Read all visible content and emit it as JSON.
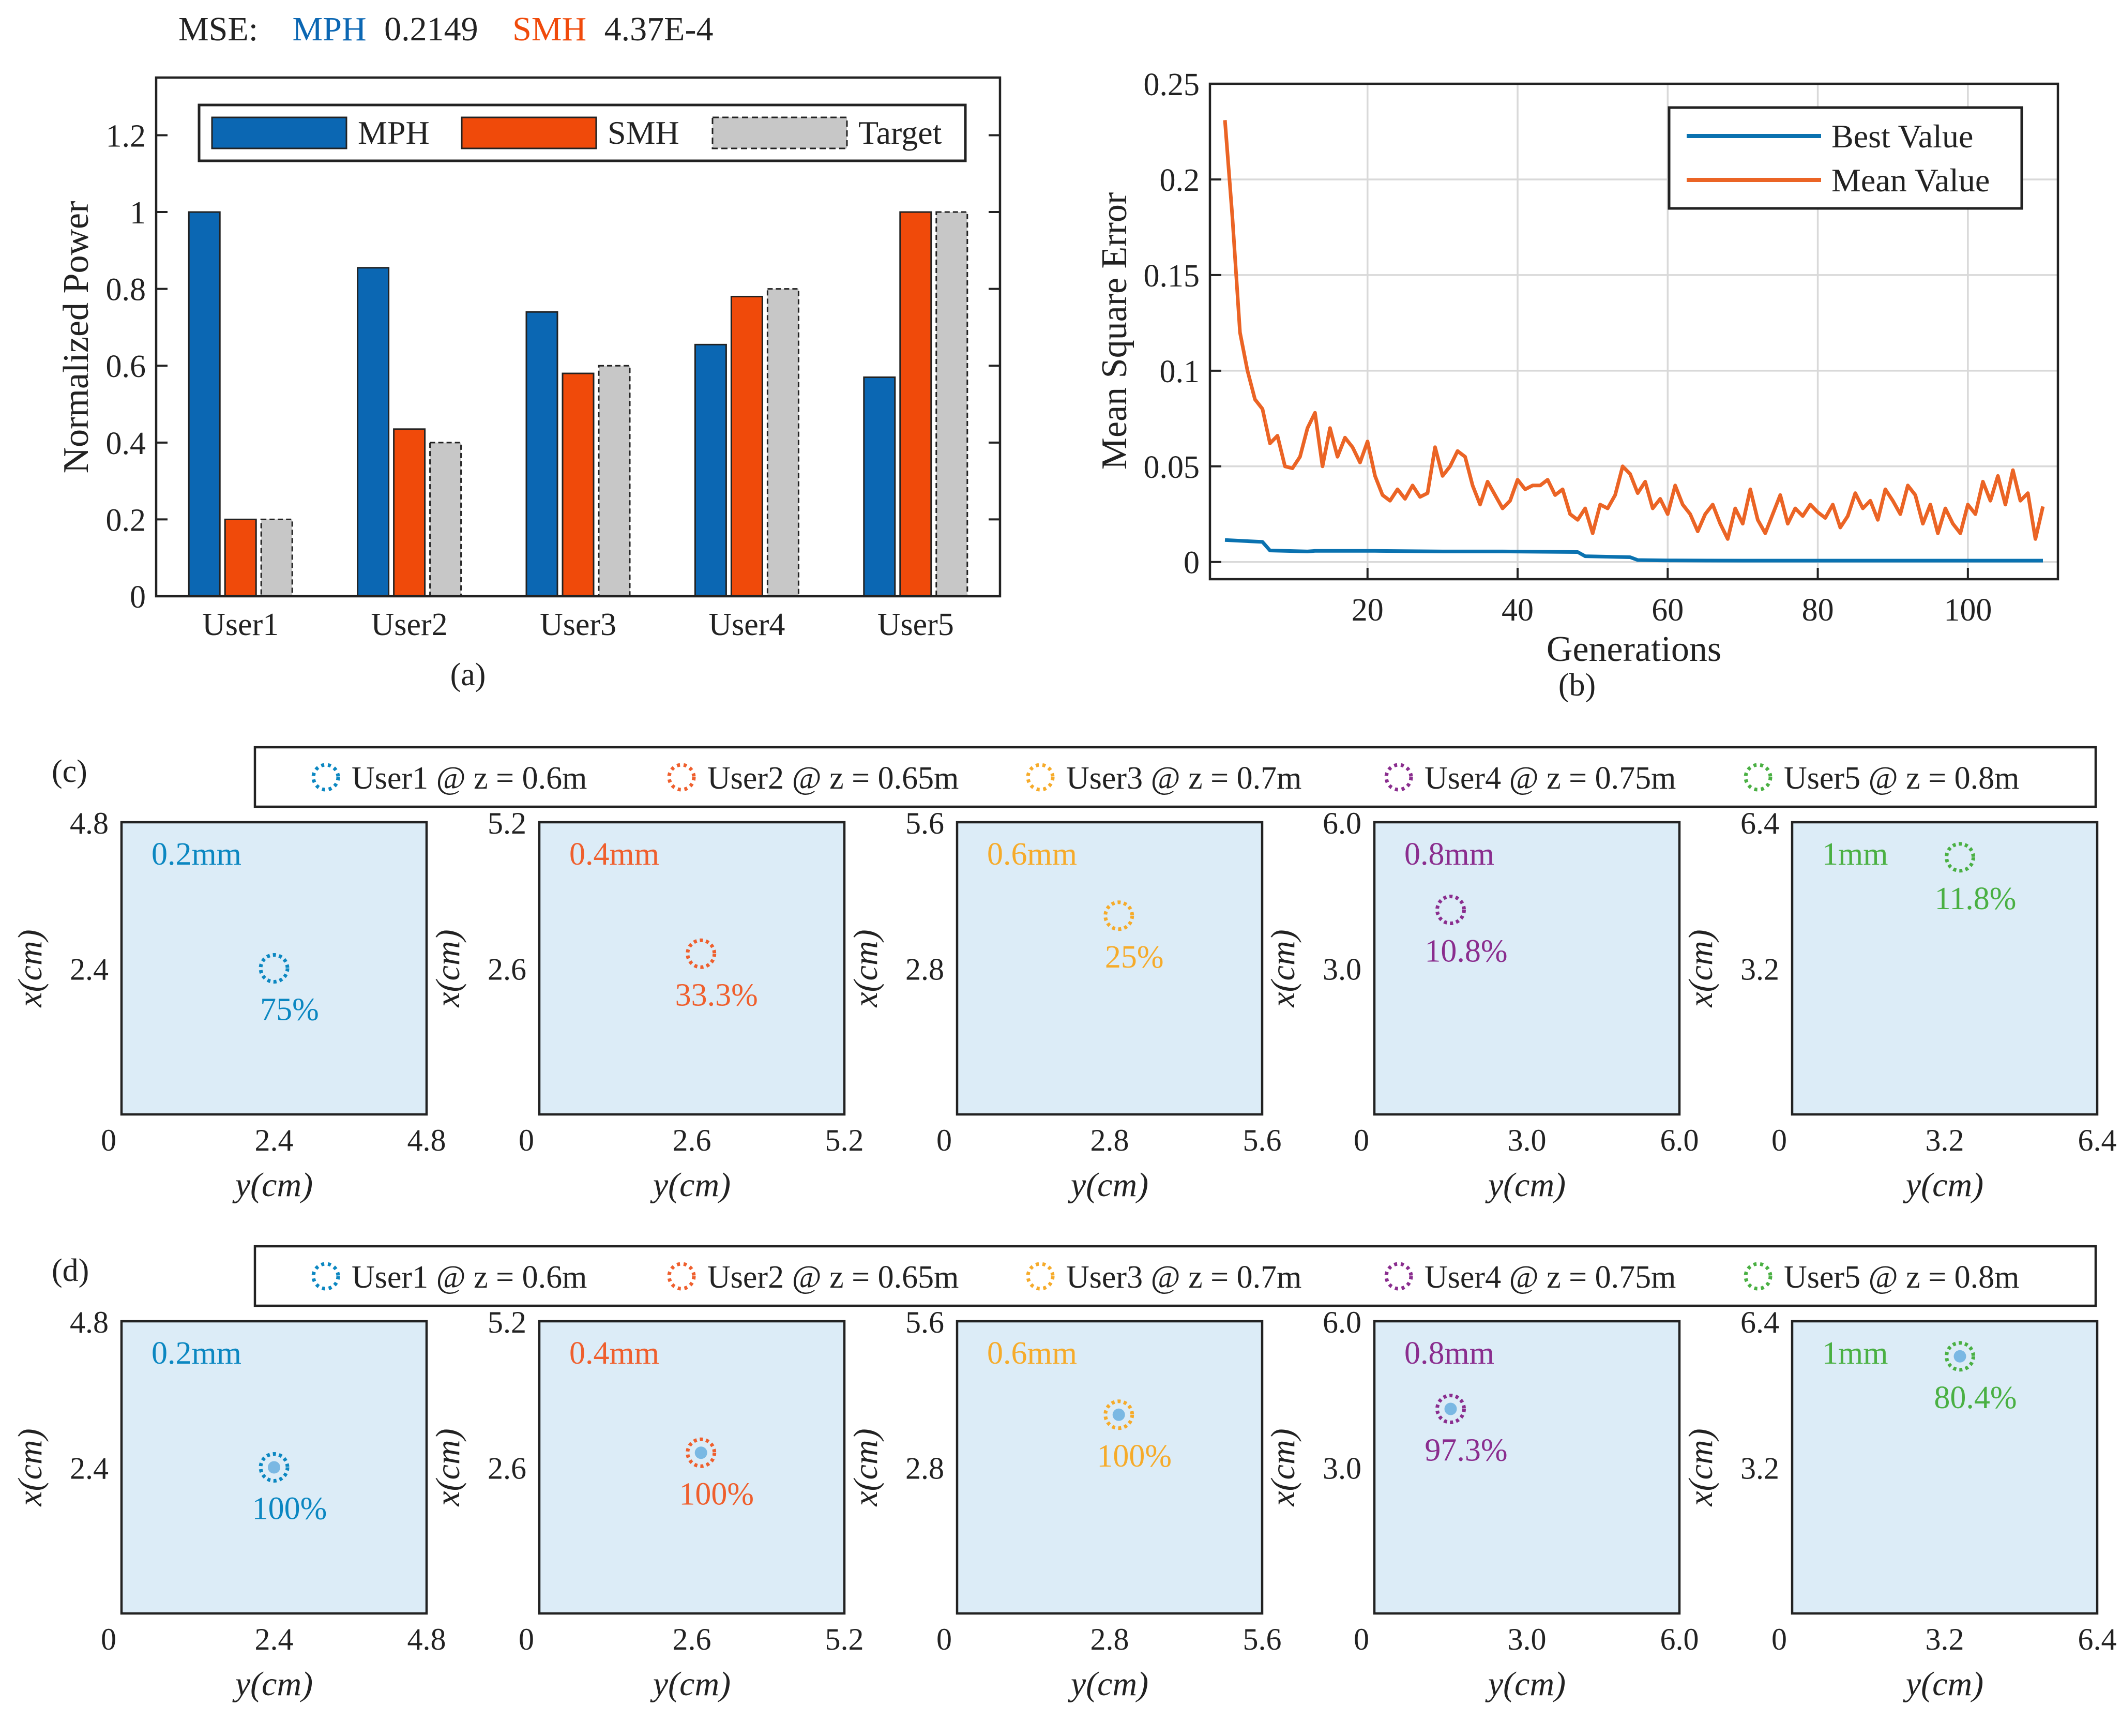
{
  "colors": {
    "mph": "#0b67b3",
    "smh": "#f04a0a",
    "target": "#c7c7c7",
    "best": "#0a72b0",
    "mean": "#eb6425",
    "user1": "#0b87c1",
    "user2": "#ef5f2d",
    "user3": "#f6ab2a",
    "user4": "#8a2d8e",
    "user5": "#4ab043"
  },
  "mse": {
    "prefix": "MSE:",
    "mph_label": "MPH",
    "mph_value": "0.2149",
    "smh_label": "SMH",
    "smh_value": "4.37E-4"
  },
  "chart_data": [
    {
      "id": "a",
      "type": "bar",
      "caption": "(a)",
      "ylabel": "Normalized Power",
      "xlabel": "",
      "ylim": [
        0,
        1.35
      ],
      "yticks": [
        "0",
        "0.2",
        "0.4",
        "0.6",
        "0.8",
        "1",
        "1.2"
      ],
      "ytick_values": [
        0,
        0.2,
        0.4,
        0.6,
        0.8,
        1.0,
        1.2
      ],
      "categories": [
        "User1",
        "User2",
        "User3",
        "User4",
        "User5"
      ],
      "legend": [
        "MPH",
        "SMH",
        "Target"
      ],
      "legend_position": "top",
      "series": [
        {
          "name": "MPH",
          "values": [
            1.0,
            0.855,
            0.74,
            0.655,
            0.57
          ]
        },
        {
          "name": "SMH",
          "values": [
            0.2,
            0.435,
            0.58,
            0.78,
            1.0
          ]
        },
        {
          "name": "Target",
          "values": [
            0.2,
            0.4,
            0.6,
            0.8,
            1.0
          ]
        }
      ]
    },
    {
      "id": "b",
      "type": "line",
      "caption": "(b)",
      "xlabel": "Generations",
      "ylabel": "Mean Square Error",
      "xlim": [
        -1,
        112
      ],
      "ylim": [
        -0.009,
        0.25
      ],
      "xticks": [
        "20",
        "40",
        "60",
        "80",
        "100"
      ],
      "xtick_values": [
        20,
        40,
        60,
        80,
        100
      ],
      "yticks": [
        "0",
        "0.05",
        "0.1",
        "0.15",
        "0.2",
        "0.25"
      ],
      "ytick_values": [
        0,
        0.05,
        0.1,
        0.15,
        0.2,
        0.25
      ],
      "grid": true,
      "legend_position": "top-right",
      "series": [
        {
          "name": "Best Value",
          "x": [
            1,
            6,
            7,
            12,
            13,
            20,
            21,
            30,
            31,
            37,
            38,
            48,
            49,
            55,
            56,
            60,
            61,
            70,
            71,
            80,
            81,
            90,
            91,
            100,
            101,
            110
          ],
          "values": [
            0.0115,
            0.0105,
            0.006,
            0.0055,
            0.0058,
            0.0058,
            0.0058,
            0.0055,
            0.0055,
            0.0055,
            0.0055,
            0.0052,
            0.003,
            0.0025,
            0.001,
            0.0008,
            0.0008,
            0.0007,
            0.0007,
            0.0007,
            0.0007,
            0.0007,
            0.0007,
            0.0007,
            0.0007,
            0.0007
          ]
        },
        {
          "name": "Mean Value",
          "x": [
            1,
            2,
            3,
            4,
            5,
            6,
            7,
            8,
            9,
            10,
            11,
            12,
            13,
            14,
            15,
            16,
            17,
            18,
            19,
            20,
            21,
            22,
            23,
            24,
            25,
            26,
            27,
            28,
            29,
            30,
            31,
            32,
            33,
            34,
            35,
            36,
            37,
            38,
            39,
            40,
            41,
            42,
            43,
            44,
            45,
            46,
            47,
            48,
            49,
            50,
            51,
            52,
            53,
            54,
            55,
            56,
            57,
            58,
            59,
            60,
            61,
            62,
            63,
            64,
            65,
            66,
            67,
            68,
            69,
            70,
            71,
            72,
            73,
            74,
            75,
            76,
            77,
            78,
            79,
            80,
            81,
            82,
            83,
            84,
            85,
            86,
            87,
            88,
            89,
            90,
            91,
            92,
            93,
            94,
            95,
            96,
            97,
            98,
            99,
            100,
            101,
            102,
            103,
            104,
            105,
            106,
            107,
            108,
            109,
            110
          ],
          "values": [
            0.231,
            0.18,
            0.12,
            0.1,
            0.085,
            0.08,
            0.062,
            0.066,
            0.05,
            0.049,
            0.055,
            0.07,
            0.078,
            0.05,
            0.07,
            0.055,
            0.065,
            0.06,
            0.052,
            0.063,
            0.045,
            0.035,
            0.032,
            0.038,
            0.033,
            0.04,
            0.034,
            0.036,
            0.06,
            0.045,
            0.05,
            0.058,
            0.055,
            0.04,
            0.03,
            0.042,
            0.035,
            0.028,
            0.032,
            0.043,
            0.038,
            0.04,
            0.04,
            0.043,
            0.035,
            0.038,
            0.025,
            0.022,
            0.028,
            0.015,
            0.03,
            0.028,
            0.035,
            0.05,
            0.046,
            0.036,
            0.042,
            0.028,
            0.033,
            0.025,
            0.04,
            0.03,
            0.025,
            0.016,
            0.025,
            0.03,
            0.02,
            0.012,
            0.028,
            0.02,
            0.038,
            0.022,
            0.015,
            0.025,
            0.035,
            0.02,
            0.028,
            0.024,
            0.03,
            0.026,
            0.023,
            0.03,
            0.018,
            0.024,
            0.036,
            0.028,
            0.032,
            0.022,
            0.038,
            0.032,
            0.025,
            0.04,
            0.035,
            0.02,
            0.03,
            0.015,
            0.028,
            0.02,
            0.015,
            0.03,
            0.025,
            0.042,
            0.032,
            0.045,
            0.03,
            0.048,
            0.032,
            0.036,
            0.012,
            0.029
          ]
        }
      ]
    }
  ],
  "heatmaps": {
    "c": {
      "label": "(c)",
      "legend": [
        "User1 @ z = 0.6m",
        "User2 @ z = 0.65m",
        "User3 @ z = 0.7m",
        "User4 @ z = 0.75m",
        "User5 @ z = 0.8m"
      ],
      "panels": [
        {
          "size_label": "0.2mm",
          "percent": "75%",
          "ymax": "4.8",
          "ymid": "2.4",
          "xmid": "2.4",
          "xmax": "4.8",
          "origin": "0",
          "xlabel": "y(cm)",
          "ylabel": "x(cm)",
          "focus_y": 0.5,
          "focus_x": 0.5
        },
        {
          "size_label": "0.4mm",
          "percent": "33.3%",
          "ymax": "5.2",
          "ymid": "2.6",
          "xmid": "2.6",
          "xmax": "5.2",
          "origin": "0",
          "xlabel": "y(cm)",
          "ylabel": "x(cm)",
          "focus_y": 0.53,
          "focus_x": 0.55
        },
        {
          "size_label": "0.6mm",
          "percent": "25%",
          "ymax": "5.6",
          "ymid": "2.8",
          "xmid": "2.8",
          "xmax": "5.6",
          "origin": "0",
          "xlabel": "y(cm)",
          "ylabel": "x(cm)",
          "focus_y": 0.53,
          "focus_x": 0.68
        },
        {
          "size_label": "0.8mm",
          "percent": "10.8%",
          "ymax": "6.0",
          "ymid": "3.0",
          "xmid": "3.0",
          "xmax": "6.0",
          "origin": "0",
          "xlabel": "y(cm)",
          "ylabel": "x(cm)",
          "focus_y": 0.25,
          "focus_x": 0.7
        },
        {
          "size_label": "1mm",
          "percent": "11.8%",
          "ymax": "6.4",
          "ymid": "3.2",
          "xmid": "3.2",
          "xmax": "6.4",
          "origin": "0",
          "xlabel": "y(cm)",
          "ylabel": "x(cm)",
          "focus_y": 0.55,
          "focus_x": 0.88
        }
      ]
    },
    "d": {
      "label": "(d)",
      "legend": [
        "User1 @ z = 0.6m",
        "User2 @ z = 0.65m",
        "User3 @ z = 0.7m",
        "User4 @ z = 0.75m",
        "User5 @ z = 0.8m"
      ],
      "panels": [
        {
          "size_label": "0.2mm",
          "percent": "100%",
          "ymax": "4.8",
          "ymid": "2.4",
          "xmid": "2.4",
          "xmax": "4.8",
          "origin": "0",
          "xlabel": "y(cm)",
          "ylabel": "x(cm)",
          "focus_y": 0.5,
          "focus_x": 0.5
        },
        {
          "size_label": "0.4mm",
          "percent": "100%",
          "ymax": "5.2",
          "ymid": "2.6",
          "xmid": "2.6",
          "xmax": "5.2",
          "origin": "0",
          "xlabel": "y(cm)",
          "ylabel": "x(cm)",
          "focus_y": 0.53,
          "focus_x": 0.55
        },
        {
          "size_label": "0.6mm",
          "percent": "100%",
          "ymax": "5.6",
          "ymid": "2.8",
          "xmid": "2.8",
          "xmax": "5.6",
          "origin": "0",
          "xlabel": "y(cm)",
          "ylabel": "x(cm)",
          "focus_y": 0.53,
          "focus_x": 0.68
        },
        {
          "size_label": "0.8mm",
          "percent": "97.3%",
          "ymax": "6.0",
          "ymid": "3.0",
          "xmid": "3.0",
          "xmax": "6.0",
          "origin": "0",
          "xlabel": "y(cm)",
          "ylabel": "x(cm)",
          "focus_y": 0.25,
          "focus_x": 0.7
        },
        {
          "size_label": "1mm",
          "percent": "80.4%",
          "ymax": "6.4",
          "ymid": "3.2",
          "xmid": "3.2",
          "xmax": "6.4",
          "origin": "0",
          "xlabel": "y(cm)",
          "ylabel": "x(cm)",
          "focus_y": 0.55,
          "focus_x": 0.88
        }
      ]
    }
  }
}
